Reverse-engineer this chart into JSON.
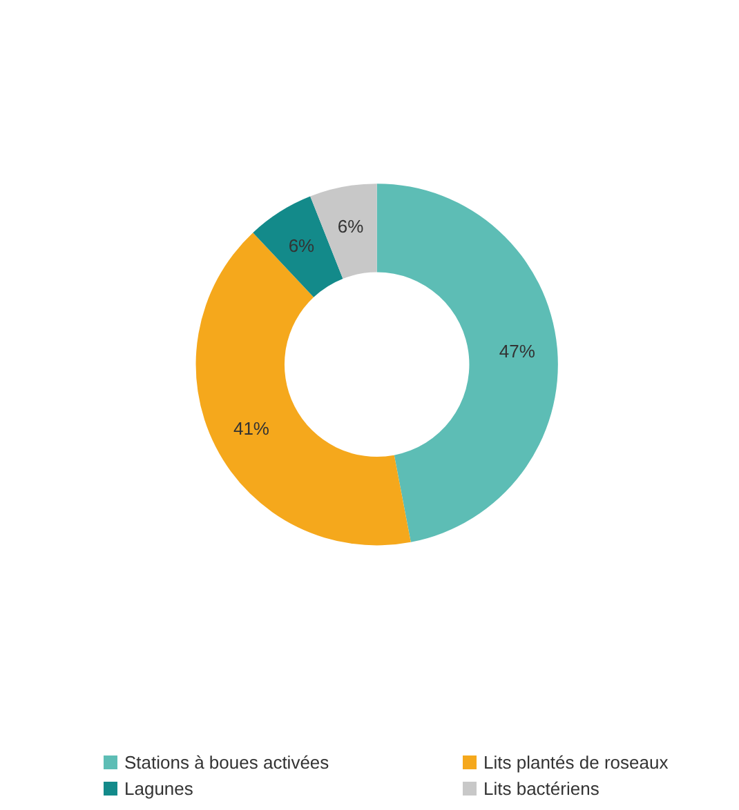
{
  "chart_data": {
    "type": "donut",
    "categories": [
      "Stations à boues activées",
      "Lits plantés de roseaux",
      "Lagunes",
      "Lits bactériens"
    ],
    "values": [
      47,
      41,
      6,
      6
    ],
    "value_labels": [
      "47%",
      "41%",
      "6%",
      "6%"
    ],
    "colors": [
      "#5dbdb5",
      "#f5a81c",
      "#138a8a",
      "#c8c8c8"
    ],
    "legend": "bottom"
  }
}
